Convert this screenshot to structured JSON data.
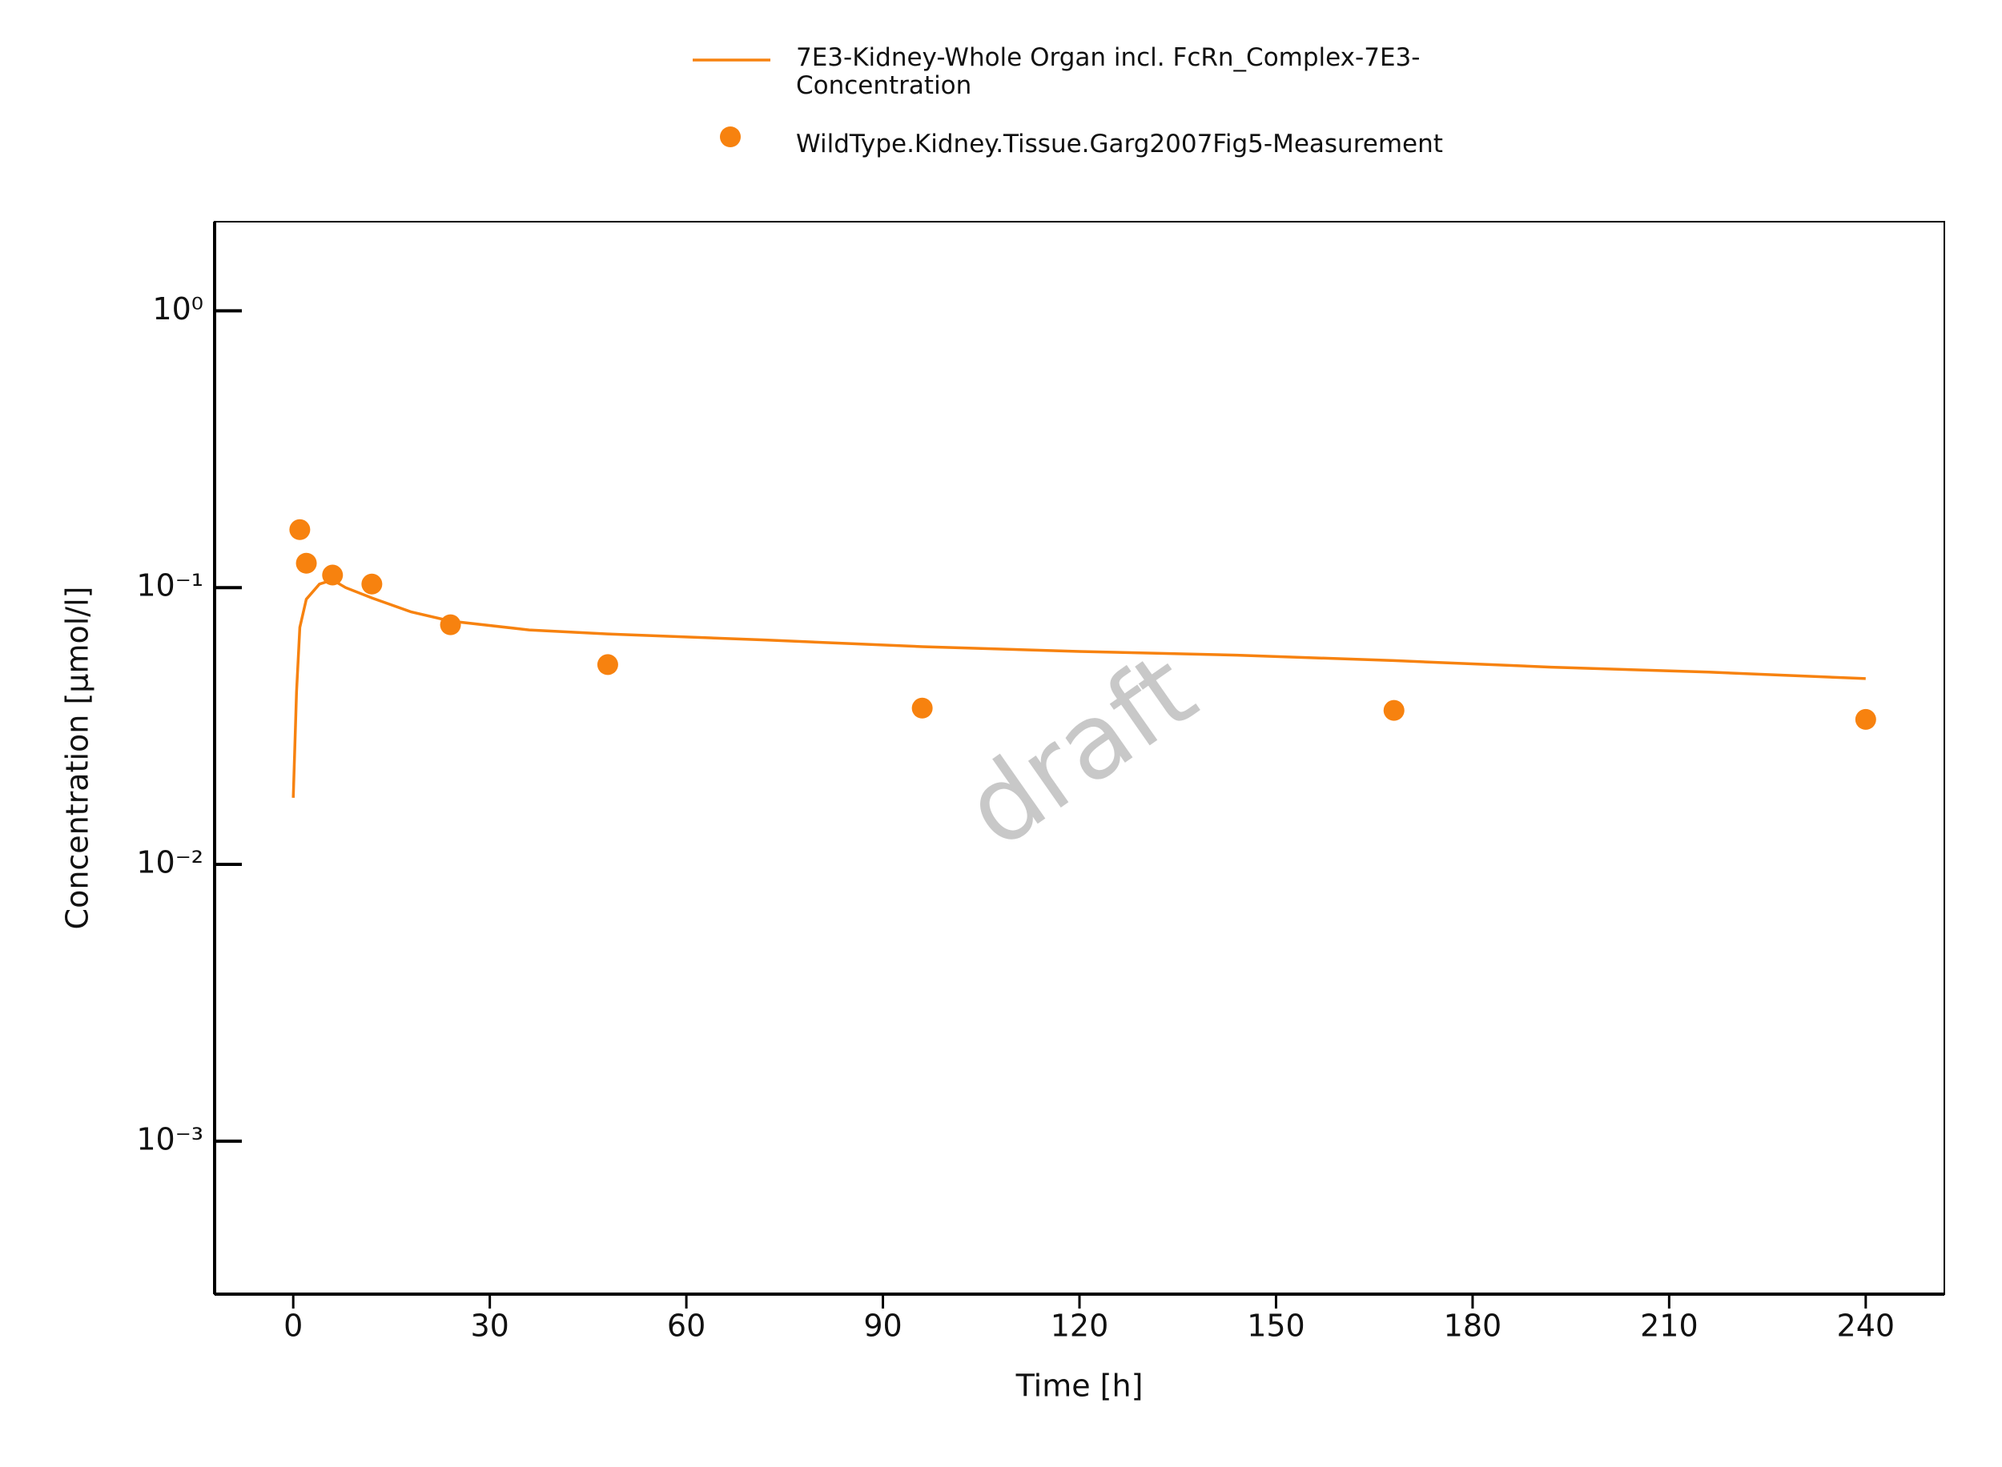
{
  "chart_data": {
    "type": "line",
    "series": [
      {
        "name": "7E3-Kidney-Whole Organ incl. FcRn_Complex-7E3-Concentration",
        "color": "#f7820f",
        "mode": "line",
        "x": [
          0,
          0.5,
          1,
          2,
          4,
          6,
          8,
          12,
          18,
          24,
          36,
          48,
          72,
          96,
          120,
          144,
          168,
          192,
          216,
          240
        ],
        "values": [
          0.0174,
          0.042,
          0.0718,
          0.0908,
          0.103,
          0.1066,
          0.1,
          0.0918,
          0.0817,
          0.0757,
          0.0703,
          0.068,
          0.0647,
          0.0612,
          0.0588,
          0.057,
          0.0545,
          0.0516,
          0.0495,
          0.0469
        ]
      },
      {
        "name": "WildType.Kidney.Tissue.Garg2007Fig5-Measurement",
        "color": "#f7820f",
        "mode": "markers",
        "x": [
          1,
          2,
          6,
          12,
          24,
          48,
          96,
          168,
          240
        ],
        "values": [
          0.162,
          0.1225,
          0.111,
          0.103,
          0.0734,
          0.0527,
          0.0367,
          0.036,
          0.0334
        ]
      }
    ],
    "xlabel": "Time [h]",
    "ylabel": "Concentration [µmol/l]",
    "xlim": [
      -12,
      252
    ],
    "xticks": [
      0,
      30,
      60,
      90,
      120,
      150,
      180,
      210,
      240
    ],
    "ylim": [
      0.00028,
      2.1
    ],
    "ylog": true,
    "yticks": [
      {
        "value": 0.001,
        "label": "10⁻³"
      },
      {
        "value": 0.01,
        "label": "10⁻²"
      },
      {
        "value": 0.1,
        "label": "10⁻¹"
      },
      {
        "value": 1,
        "label": "10⁰"
      }
    ],
    "watermark": "draft",
    "legend": "top"
  }
}
